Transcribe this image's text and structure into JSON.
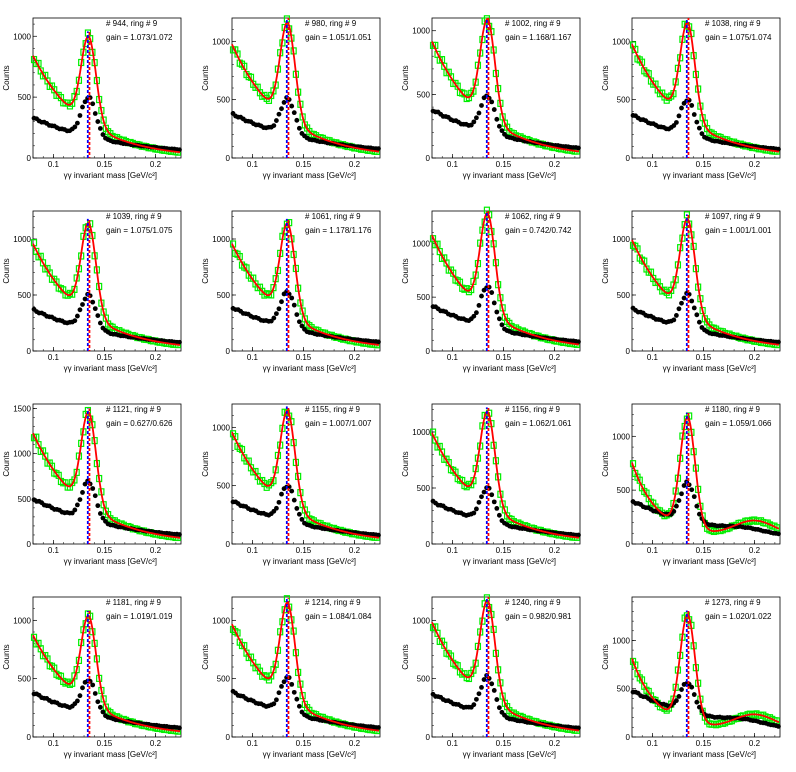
{
  "figure": {
    "xlabel": "γγ invariant mass [GeV/c²]",
    "ylabel": "Counts",
    "xlim": [
      0.08,
      0.225
    ],
    "xticks": [
      0.1,
      0.15,
      0.2
    ],
    "xtick_labels": [
      "0.1",
      "0.15",
      "0.2"
    ],
    "colors": {
      "data": "#000000",
      "filtered": "#00ee00",
      "fit": "#ff0000",
      "line_red": "#ff0000",
      "line_blue": "#0000ff"
    }
  },
  "chart_data": [
    {
      "type": "scatter",
      "annotation_id": "# 944, ring # 9",
      "annotation_gain": "gain = 1.073/1.072",
      "ylim": [
        0,
        1150
      ],
      "yticks": [
        0,
        500,
        1000
      ],
      "ytick_labels": [
        "0",
        "500",
        "1000"
      ],
      "peak": 1000,
      "sig": 490,
      "base": 330,
      "shape": "normal"
    },
    {
      "type": "scatter",
      "annotation_id": "# 980, ring # 9",
      "annotation_gain": "gain = 1.051/1.051",
      "ylim": [
        0,
        1200
      ],
      "yticks": [
        0,
        500,
        1000
      ],
      "ytick_labels": [
        "0",
        "500",
        "1000"
      ],
      "peak": 1160,
      "sig": 500,
      "base": 380,
      "shape": "normal"
    },
    {
      "type": "scatter",
      "annotation_id": "# 1002, ring # 9",
      "annotation_gain": "gain = 1.168/1.167",
      "ylim": [
        0,
        1100
      ],
      "yticks": [
        0,
        500,
        1000
      ],
      "ytick_labels": [
        "0",
        "500",
        "1000"
      ],
      "peak": 1090,
      "sig": 480,
      "base": 380,
      "shape": "normal"
    },
    {
      "type": "scatter",
      "annotation_id": "# 1038, ring # 9",
      "annotation_gain": "gain = 1.075/1.074",
      "ylim": [
        0,
        1200
      ],
      "yticks": [
        0,
        500,
        1000
      ],
      "ytick_labels": [
        "0",
        "500",
        "1000"
      ],
      "peak": 1160,
      "sig": 490,
      "base": 370,
      "shape": "normal"
    },
    {
      "type": "scatter",
      "annotation_id": "# 1039, ring # 9",
      "annotation_gain": "gain = 1.075/1.075",
      "ylim": [
        0,
        1250
      ],
      "yticks": [
        0,
        500,
        1000
      ],
      "ytick_labels": [
        "0",
        "500",
        "1000"
      ],
      "peak": 1140,
      "sig": 490,
      "base": 370,
      "shape": "normal"
    },
    {
      "type": "scatter",
      "annotation_id": "# 1061, ring # 9",
      "annotation_gain": "gain = 1.178/1.176",
      "ylim": [
        0,
        1250
      ],
      "yticks": [
        0,
        500,
        1000
      ],
      "ytick_labels": [
        "0",
        "500",
        "1000"
      ],
      "peak": 1140,
      "sig": 520,
      "base": 390,
      "shape": "normal"
    },
    {
      "type": "scatter",
      "annotation_id": "# 1062, ring # 9",
      "annotation_gain": "gain = 0.742/0.742",
      "ylim": [
        0,
        1300
      ],
      "yticks": [
        0,
        500,
        1000
      ],
      "ytick_labels": [
        "0",
        "500",
        "1000"
      ],
      "peak": 1280,
      "sig": 590,
      "base": 420,
      "shape": "normal"
    },
    {
      "type": "scatter",
      "annotation_id": "# 1097, ring # 9",
      "annotation_gain": "gain = 1.001/1.001",
      "ylim": [
        0,
        1250
      ],
      "yticks": [
        0,
        500,
        1000
      ],
      "ytick_labels": [
        "0",
        "500",
        "1000"
      ],
      "peak": 1180,
      "sig": 500,
      "base": 380,
      "shape": "normal"
    },
    {
      "type": "scatter",
      "annotation_id": "# 1121, ring # 9",
      "annotation_gain": "gain = 0.627/0.626",
      "ylim": [
        0,
        1550
      ],
      "yticks": [
        0,
        500,
        1000,
        1500
      ],
      "ytick_labels": [
        "0",
        "500",
        "1000",
        "1500"
      ],
      "peak": 1460,
      "sig": 680,
      "base": 500,
      "shape": "normal"
    },
    {
      "type": "scatter",
      "annotation_id": "# 1155, ring # 9",
      "annotation_gain": "gain = 1.007/1.007",
      "ylim": [
        0,
        1200
      ],
      "yticks": [
        0,
        500,
        1000
      ],
      "ytick_labels": [
        "0",
        "500",
        "1000"
      ],
      "peak": 1140,
      "sig": 490,
      "base": 370,
      "shape": "normal"
    },
    {
      "type": "scatter",
      "annotation_id": "# 1156, ring # 9",
      "annotation_gain": "gain = 1.062/1.061",
      "ylim": [
        0,
        1250
      ],
      "yticks": [
        0,
        500,
        1000
      ],
      "ytick_labels": [
        "0",
        "500",
        "1000"
      ],
      "peak": 1180,
      "sig": 490,
      "base": 380,
      "shape": "normal"
    },
    {
      "type": "scatter",
      "annotation_id": "# 1180, ring # 9",
      "annotation_gain": "gain = 1.059/1.066",
      "ylim": [
        0,
        1300
      ],
      "yticks": [
        0,
        500,
        1000
      ],
      "ytick_labels": [
        "0",
        "500",
        "1000"
      ],
      "peak": 1180,
      "sig": 560,
      "base": 400,
      "shape": "rising"
    },
    {
      "type": "scatter",
      "annotation_id": "# 1181, ring # 9",
      "annotation_gain": "gain = 1.019/1.019",
      "ylim": [
        0,
        1200
      ],
      "yticks": [
        0,
        500,
        1000
      ],
      "ytick_labels": [
        "0",
        "500",
        "1000"
      ],
      "peak": 1040,
      "sig": 480,
      "base": 380,
      "shape": "normal"
    },
    {
      "type": "scatter",
      "annotation_id": "# 1214, ring # 9",
      "annotation_gain": "gain = 1.084/1.084",
      "ylim": [
        0,
        1200
      ],
      "yticks": [
        0,
        500,
        1000
      ],
      "ytick_labels": [
        "0",
        "500",
        "1000"
      ],
      "peak": 1150,
      "sig": 500,
      "base": 390,
      "shape": "normal"
    },
    {
      "type": "scatter",
      "annotation_id": "# 1240, ring # 9",
      "annotation_gain": "gain = 0.982/0.981",
      "ylim": [
        0,
        1200
      ],
      "yticks": [
        0,
        500,
        1000
      ],
      "ytick_labels": [
        "0",
        "500",
        "1000"
      ],
      "peak": 1170,
      "sig": 510,
      "base": 370,
      "shape": "normal"
    },
    {
      "type": "scatter",
      "annotation_id": "# 1273, ring # 9",
      "annotation_gain": "gain = 1.020/1.022",
      "ylim": [
        0,
        1450
      ],
      "yticks": [
        0,
        500,
        1000
      ],
      "ytick_labels": [
        "0",
        "500",
        "1000"
      ],
      "peak": 1270,
      "sig": 550,
      "base": 480,
      "shape": "rising"
    }
  ]
}
